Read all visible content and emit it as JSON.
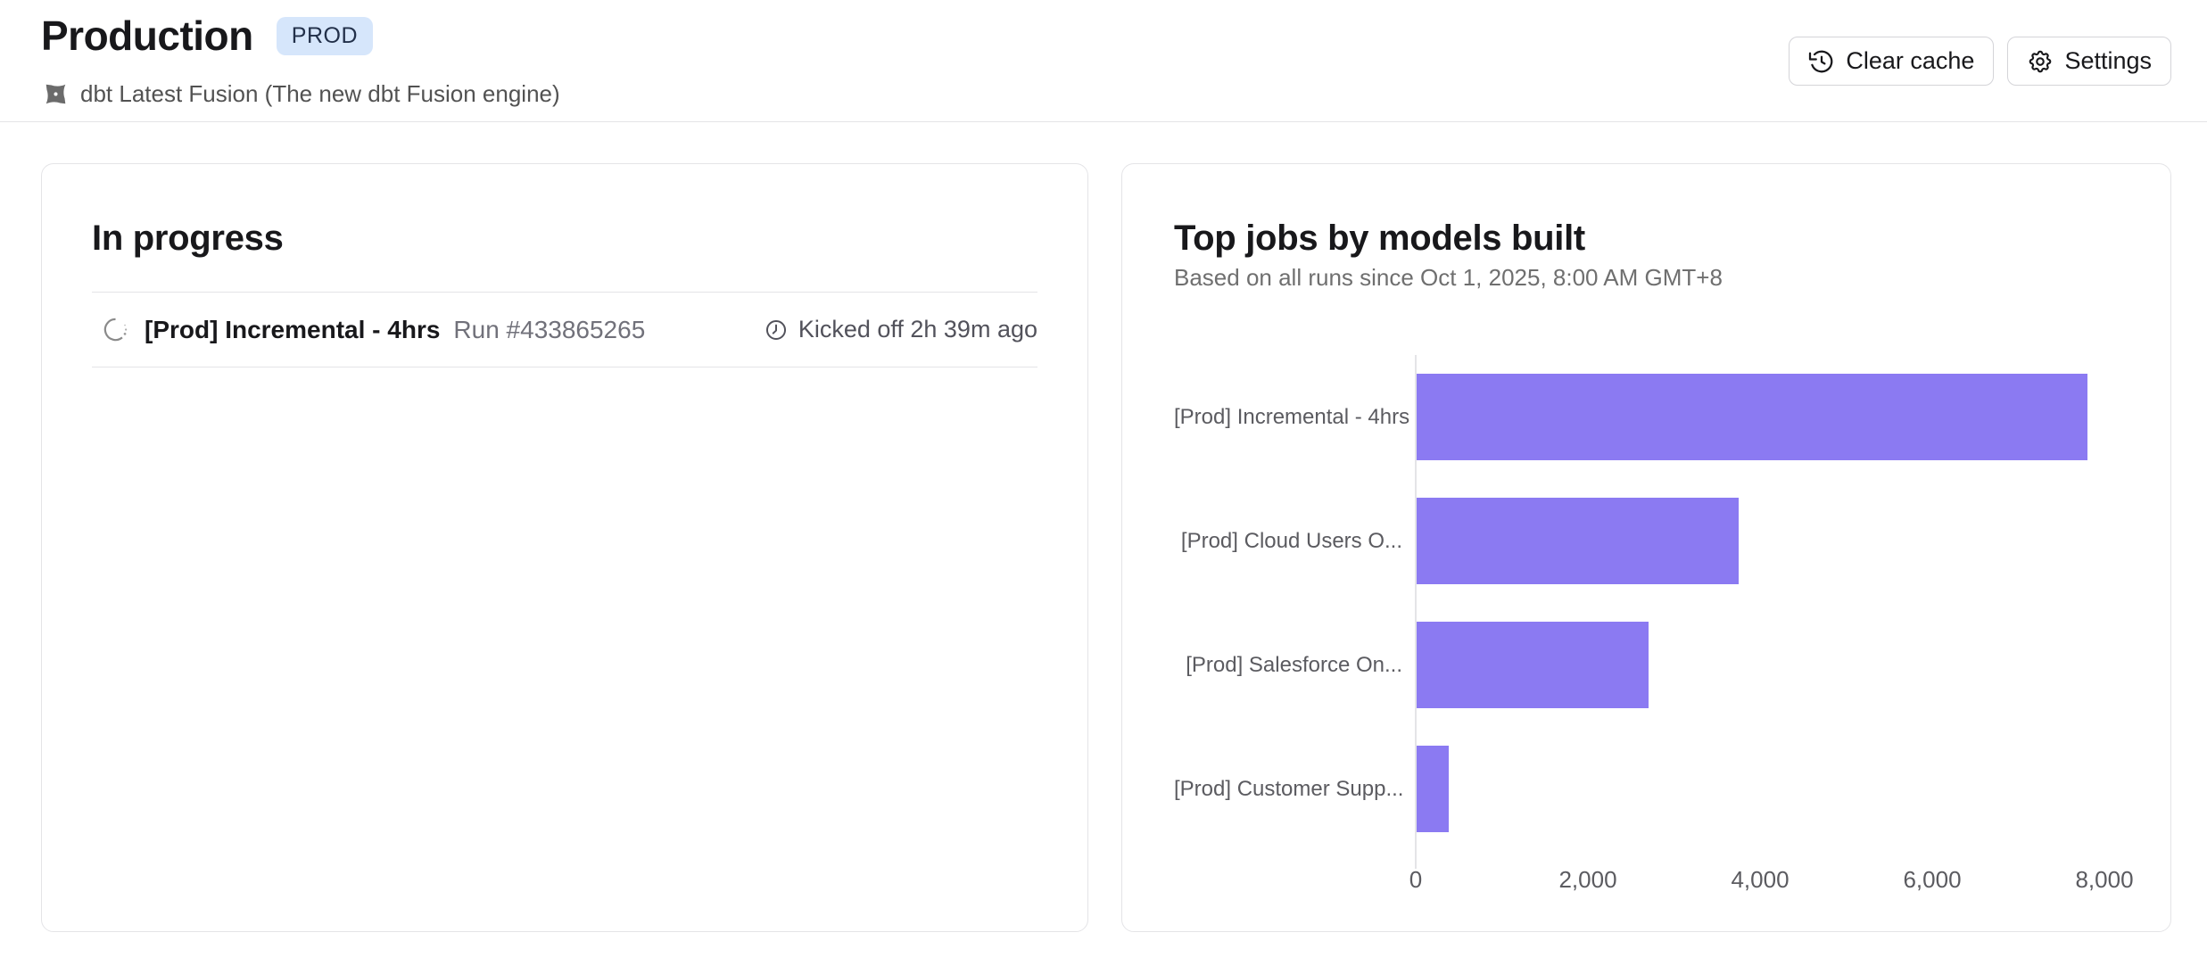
{
  "header": {
    "title": "Production",
    "env_badge": "PROD",
    "engine_label": "dbt Latest Fusion (The new dbt Fusion engine)",
    "clear_cache_label": "Clear cache",
    "settings_label": "Settings"
  },
  "in_progress_card": {
    "title": "In progress",
    "run": {
      "job_name": "[Prod] Incremental - 4hrs",
      "run_label": "Run #433865265",
      "kicked_off": "Kicked off 2h 39m ago"
    }
  },
  "top_jobs_card": {
    "title": "Top jobs by models built",
    "subtitle": "Based on all runs since Oct 1, 2025, 8:00 AM GMT+8"
  },
  "chart_data": {
    "type": "bar",
    "orientation": "horizontal",
    "title": "Top jobs by models built",
    "categories": [
      "[Prod] Incremental - 4hrs",
      "[Prod] Cloud Users O...",
      "[Prod] Salesforce On...",
      "[Prod] Customer Supp..."
    ],
    "values": [
      7800,
      3750,
      2700,
      380
    ],
    "xlim": [
      0,
      8000
    ],
    "xticks": [
      0,
      2000,
      4000,
      6000,
      8000
    ],
    "xlabel": "",
    "ylabel": "",
    "grid": false,
    "legend": false,
    "bar_color": "#8b7af2",
    "axis_color": "#e4e4e7",
    "label_color": "#5b5b60"
  },
  "colors": {
    "badge_bg": "#d6e6fb",
    "border": "#e4e4e7",
    "muted_text": "#71717a",
    "icon_gray": "#6b6b6b"
  }
}
